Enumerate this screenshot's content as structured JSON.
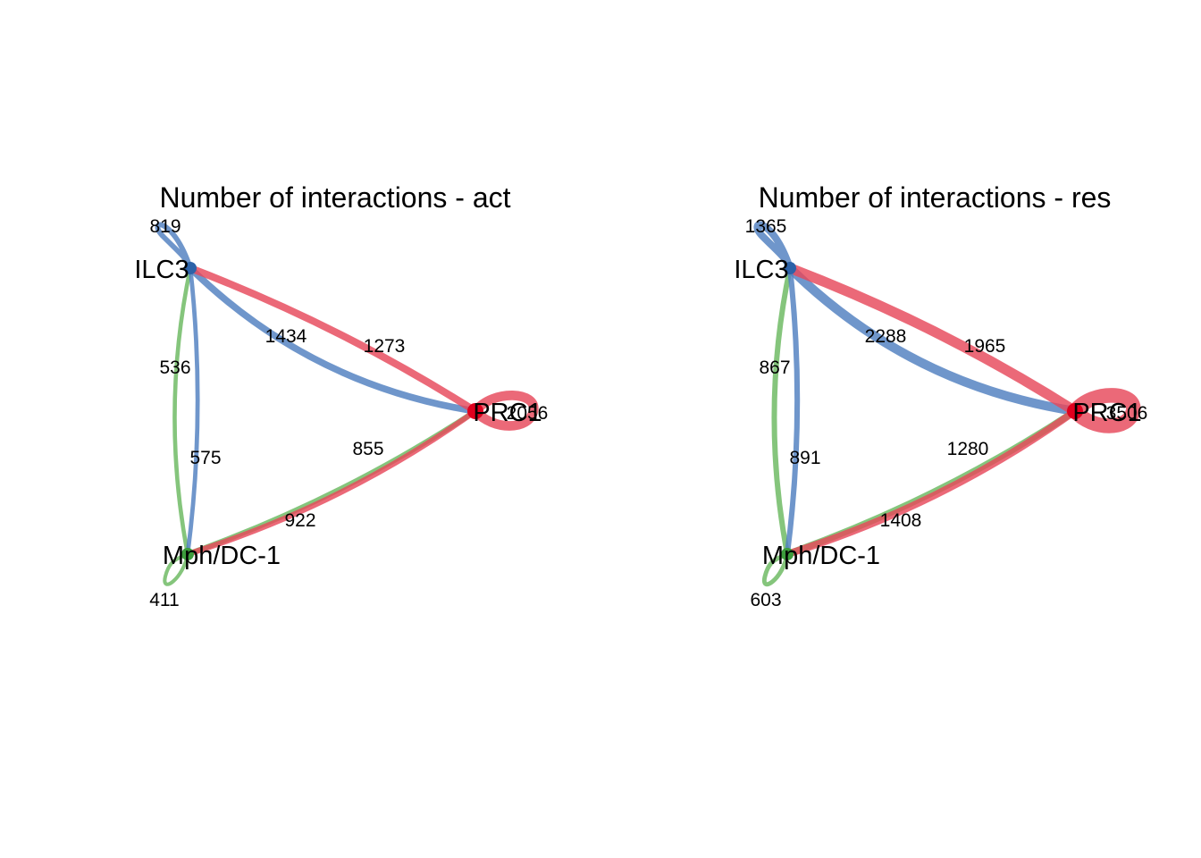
{
  "colors": {
    "ILC3": "#4f7fbf",
    "PRC1": "#e6485a",
    "Mph/DC-1": "#6ab85f",
    "ILC3_dot": "#2c62a8",
    "PRC1_dot": "#e0001e",
    "Mph/DC-1_dot": "#3c9c3c"
  },
  "panels": [
    {
      "title": "Number of interactions - act",
      "nodes": [
        {
          "id": "ILC3",
          "label": "ILC3"
        },
        {
          "id": "PRC1",
          "label": "PRC1"
        },
        {
          "id": "Mph/DC-1",
          "label": "Mph/DC-1"
        }
      ],
      "edges": [
        {
          "from": "ILC3",
          "to": "ILC3",
          "value": 819,
          "label": "819"
        },
        {
          "from": "ILC3",
          "to": "PRC1",
          "value": 1273,
          "label": "1273"
        },
        {
          "from": "PRC1",
          "to": "ILC3",
          "value": 1434,
          "label": "1434"
        },
        {
          "from": "Mph/DC-1",
          "to": "ILC3",
          "value": 536,
          "label": "536"
        },
        {
          "from": "ILC3",
          "to": "Mph/DC-1",
          "value": 575,
          "label": "575"
        },
        {
          "from": "Mph/DC-1",
          "to": "PRC1",
          "value": 855,
          "label": "855"
        },
        {
          "from": "PRC1",
          "to": "Mph/DC-1",
          "value": 922,
          "label": "922"
        },
        {
          "from": "PRC1",
          "to": "PRC1",
          "value": 2056,
          "label": "2056"
        },
        {
          "from": "Mph/DC-1",
          "to": "Mph/DC-1",
          "value": 411,
          "label": "411"
        }
      ]
    },
    {
      "title": "Number of interactions - res",
      "nodes": [
        {
          "id": "ILC3",
          "label": "ILC3"
        },
        {
          "id": "PRC1",
          "label": "PRC1"
        },
        {
          "id": "Mph/DC-1",
          "label": "Mph/DC-1"
        }
      ],
      "edges": [
        {
          "from": "ILC3",
          "to": "ILC3",
          "value": 1365,
          "label": "1365"
        },
        {
          "from": "ILC3",
          "to": "PRC1",
          "value": 1965,
          "label": "1965"
        },
        {
          "from": "PRC1",
          "to": "ILC3",
          "value": 2288,
          "label": "2288"
        },
        {
          "from": "Mph/DC-1",
          "to": "ILC3",
          "value": 867,
          "label": "867"
        },
        {
          "from": "ILC3",
          "to": "Mph/DC-1",
          "value": 891,
          "label": "891"
        },
        {
          "from": "Mph/DC-1",
          "to": "PRC1",
          "value": 1280,
          "label": "1280"
        },
        {
          "from": "PRC1",
          "to": "Mph/DC-1",
          "value": 1408,
          "label": "1408"
        },
        {
          "from": "PRC1",
          "to": "PRC1",
          "value": 3506,
          "label": "3506"
        },
        {
          "from": "Mph/DC-1",
          "to": "Mph/DC-1",
          "value": 603,
          "label": "603"
        }
      ]
    }
  ]
}
